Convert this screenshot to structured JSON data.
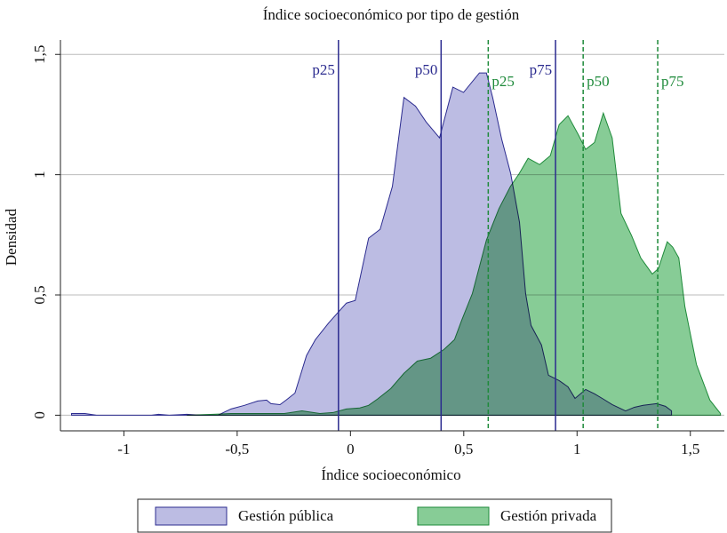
{
  "chart_data": {
    "type": "area",
    "title": "Índice socioeconómico por tipo de gestión",
    "xlabel": "Índice socioeconómico",
    "ylabel": "Densidad",
    "xlim": [
      -1.28,
      1.65
    ],
    "ylim": [
      -0.065,
      1.56
    ],
    "xticks": [
      -1,
      {
        "value": -0.5,
        "label": "-0,5"
      },
      0,
      {
        "value": 0.5,
        "label": "0,5"
      },
      1,
      {
        "value": 1.5,
        "label": "1,5"
      }
    ],
    "yticks": [
      0,
      {
        "value": 0.5,
        "label": "0,5"
      },
      1,
      {
        "value": 1.5,
        "label": "1,5"
      }
    ],
    "grid": true,
    "legend": "bottom",
    "series": [
      {
        "name": "Gestión pública",
        "color": "#2b2b8f",
        "fill": "#bcbce3",
        "line_style": "solid",
        "x": [
          -1.231,
          -1.172,
          -1.121,
          -0.878,
          -0.847,
          -0.8,
          -0.722,
          -0.664,
          -0.644,
          -0.585,
          -0.527,
          -0.468,
          -0.409,
          -0.37,
          -0.351,
          -0.311,
          -0.284,
          -0.245,
          -0.194,
          -0.155,
          -0.096,
          -0.057,
          -0.018,
          0.021,
          0.08,
          0.131,
          0.185,
          0.236,
          0.287,
          0.334,
          0.393,
          0.452,
          0.499,
          0.569,
          0.6,
          0.628,
          0.667,
          0.707,
          0.746,
          0.773,
          0.797,
          0.843,
          0.874,
          0.921,
          0.96,
          0.991,
          1.038,
          1.077,
          1.116,
          1.155,
          1.214,
          1.253,
          1.292,
          1.351,
          1.39,
          1.417
        ],
        "values": [
          0.007,
          0.007,
          0,
          0,
          0.004,
          0,
          0.004,
          0,
          0,
          0,
          0.026,
          0.041,
          0.059,
          0.063,
          0.048,
          0.044,
          0.063,
          0.092,
          0.248,
          0.314,
          0.384,
          0.425,
          0.466,
          0.477,
          0.736,
          0.773,
          0.951,
          1.321,
          1.285,
          1.219,
          1.153,
          1.364,
          1.342,
          1.423,
          1.423,
          1.319,
          1.149,
          1.005,
          0.802,
          0.506,
          0.373,
          0.292,
          0.166,
          0.144,
          0.118,
          0.07,
          0.107,
          0.089,
          0.067,
          0.044,
          0.018,
          0.033,
          0.041,
          0.048,
          0.037,
          0.018
        ],
        "percentiles": [
          {
            "label": "p25",
            "value": -0.053
          },
          {
            "label": "p50",
            "value": 0.4
          },
          {
            "label": "p75",
            "value": 0.905
          }
        ]
      },
      {
        "name": "Gestión privada",
        "color": "#1e8a3a",
        "fill": "#87cc96",
        "line_style": "dashed",
        "x": [
          -0.722,
          -0.605,
          -0.527,
          -0.37,
          -0.292,
          -0.214,
          -0.135,
          -0.077,
          -0.018,
          0.041,
          0.08,
          0.119,
          0.178,
          0.236,
          0.295,
          0.354,
          0.412,
          0.459,
          0.491,
          0.538,
          0.6,
          0.655,
          0.706,
          0.745,
          0.784,
          0.835,
          0.882,
          0.921,
          0.96,
          1.007,
          1.038,
          1.077,
          1.116,
          1.155,
          1.194,
          1.241,
          1.281,
          1.332,
          1.359,
          1.398,
          1.422,
          1.449,
          1.476,
          1.527,
          1.586,
          1.633
        ],
        "values": [
          0,
          0.004,
          0.007,
          0.007,
          0.007,
          0.018,
          0.007,
          0.011,
          0.026,
          0.03,
          0.041,
          0.067,
          0.111,
          0.174,
          0.225,
          0.237,
          0.273,
          0.314,
          0.395,
          0.506,
          0.728,
          0.858,
          0.951,
          1.005,
          1.068,
          1.042,
          1.079,
          1.208,
          1.245,
          1.164,
          1.105,
          1.134,
          1.256,
          1.153,
          0.839,
          0.746,
          0.654,
          0.587,
          0.61,
          0.721,
          0.699,
          0.654,
          0.451,
          0.211,
          0.063,
          0.007
        ],
        "percentiles": [
          {
            "label": "p25",
            "value": 0.608
          },
          {
            "label": "p50",
            "value": 1.027
          },
          {
            "label": "p75",
            "value": 1.356
          }
        ]
      }
    ]
  }
}
